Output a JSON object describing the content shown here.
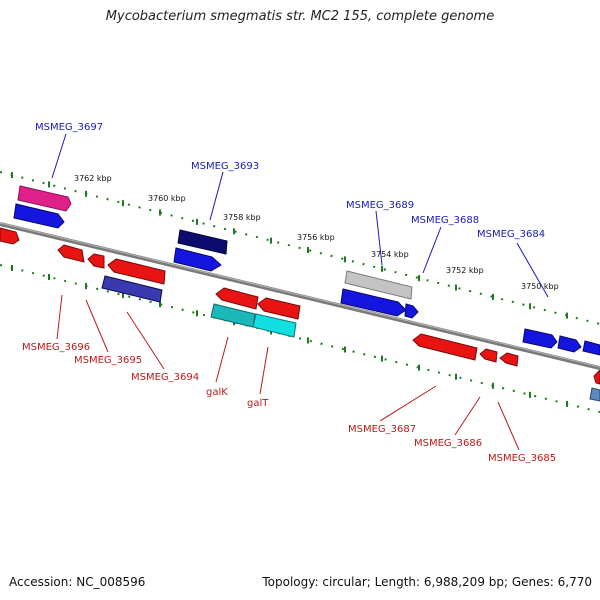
{
  "title": "Mycobacterium smegmatis str. MC2 155, complete genome",
  "accession_text": "Accession: NC_008596",
  "summary_text": "Topology: circular; Length: 6,988,209 bp; Genes: 6,770",
  "colors": {
    "forward_label": "#1a1ab8",
    "reverse_label": "#c01818",
    "backbone": "#7a7a7a",
    "ticks": "#1f7a1f"
  },
  "ruler": {
    "labels": [
      "3762 kbp",
      "3760 kbp",
      "3758 kbp",
      "3756 kbp",
      "3754 kbp",
      "3752 kbp",
      "3750 kbp"
    ]
  },
  "forward_labels": [
    "MSMEG_3697",
    "MSMEG_3693",
    "MSMEG_3689",
    "MSMEG_3688",
    "MSMEG_3684"
  ],
  "reverse_labels": [
    "MSMEG_3696",
    "MSMEG_3695",
    "MSMEG_3694",
    "galK",
    "galT",
    "MSMEG_3687",
    "MSMEG_3686",
    "MSMEG_3685"
  ]
}
